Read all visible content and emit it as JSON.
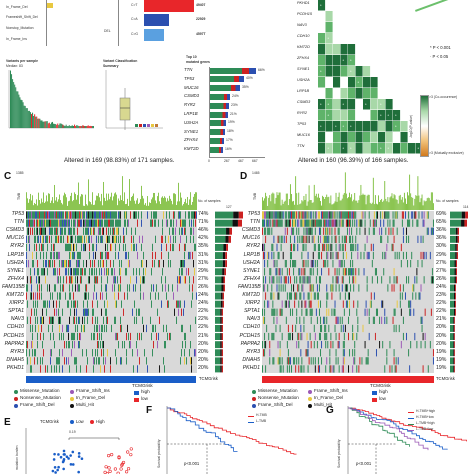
{
  "panel_letters": {
    "C": "C",
    "D": "D",
    "E": "E",
    "F": "F",
    "G": "G"
  },
  "colors": {
    "missense": "#2e8b57",
    "nonsense": "#cc2222",
    "frame_shift_del": "#2b4fb0",
    "frame_shift_ins": "#9b59b6",
    "in_frame_del": "#e8c840",
    "in_frame_ins": "#c07a3a",
    "multi_hit": "#111111",
    "tmb_bar": "#7fbf3f",
    "grid_bg": "#d9d9d9",
    "high_risk": "#1a5ec8",
    "low_risk": "#e8262a",
    "cooccur_dark": "#1f6e3a",
    "cooccur_light": "#a8d8a8"
  },
  "top": {
    "var_labels": [
      "In_Frame_Del",
      "Frameshift_Shift_Del",
      "Nonstop_Mutation",
      "In_Frame_Ins"
    ],
    "snv_rows": [
      {
        "label": "C>T",
        "value": "49407"
      },
      {
        "label": "C>A",
        "value": "22929"
      },
      {
        "label": "C>G",
        "value": "4597T"
      }
    ],
    "del_label": "DEL",
    "variants_per_sample_title": "Variants per sample",
    "variants_per_sample_sub": "Median: 83",
    "variant_class_title": "Variant Classification",
    "variant_class_sub": "Summary",
    "top10_title": "Top 10",
    "top10_sub": "mutated genes",
    "top10": [
      {
        "gene": "TTN",
        "pct": "66%"
      },
      {
        "gene": "TP53",
        "pct": "40%"
      },
      {
        "gene": "MUC16",
        "pct": "35%"
      },
      {
        "gene": "CSMD3",
        "pct": "24%"
      },
      {
        "gene": "RYR2",
        "pct": "23%"
      },
      {
        "gene": "LRP1B",
        "pct": "21%"
      },
      {
        "gene": "USH2A",
        "pct": "19%"
      },
      {
        "gene": "SYNE1",
        "pct": "18%"
      },
      {
        "gene": "ZFHX4",
        "pct": "17%"
      },
      {
        "gene": "KMT2D",
        "pct": "16%"
      }
    ],
    "top10_axis": [
      "0",
      "267",
      "467",
      "667"
    ],
    "cooccur_genes": [
      "PKHD1",
      "PCDH15",
      "NAV3",
      "CDH10",
      "KMT2D",
      "ZFHX4",
      "SYNE1",
      "USH2A",
      "LRP1B",
      "CSMD3",
      "RYR2",
      "TP53",
      "MUC16",
      "TTN"
    ],
    "p_legend": [
      "* P < 0.001",
      "· P < 0.05"
    ],
    "cooccur_legend": [
      ">3 (Co-occurence)",
      "-log10(P-value)",
      ">3 (Mutually exclusive)"
    ],
    "cooccur_ticks": [
      "3",
      "2",
      "1",
      "0",
      "1",
      "2",
      "3"
    ]
  },
  "panelC": {
    "title": "Altered in 169 (98.83%) of 171 samples.",
    "tmb_label": "TMB",
    "tmb_max": "1385",
    "count_label": "No. of samples",
    "count_max": "127",
    "genes": [
      "TP53",
      "TTN",
      "CSMD3",
      "MUC16",
      "RYR2",
      "LRP1B",
      "USH2A",
      "SYNE1",
      "ZFHX4",
      "FAM135B",
      "KMT2D",
      "XIRP2",
      "SPTA1",
      "NAV3",
      "CDH10",
      "PCDH15",
      "PAPPA2",
      "RYR3",
      "DNAH5",
      "PKHD1"
    ],
    "pcts": [
      "74%",
      "71%",
      "46%",
      "42%",
      "35%",
      "31%",
      "31%",
      "29%",
      "27%",
      "26%",
      "24%",
      "24%",
      "22%",
      "22%",
      "22%",
      "21%",
      "20%",
      "20%",
      "20%",
      "20%"
    ],
    "risk_label": "TCMGrisk",
    "legend_muts": [
      "Missense_Mutation",
      "Nonsense_Mutation",
      "Frame_Shift_Del",
      "Frame_Shift_Ins",
      "In_Frame_Del",
      "Multi_Hit"
    ],
    "legend_risk_title": "TCMGrisk",
    "legend_risk": [
      "high",
      "low"
    ]
  },
  "panelD": {
    "title": "Altered in 160 (96.39%) of 166 samples.",
    "tmb_label": "TMB",
    "tmb_max": "1465",
    "count_label": "No. of samples",
    "count_max": "114",
    "genes": [
      "TP53",
      "TTN",
      "CSMD3",
      "MUC16",
      "RYR2",
      "LRP1B",
      "USH2A",
      "SYNE1",
      "ZFHX4",
      "FAM135B",
      "KMT2D",
      "XIRP2",
      "SPTA1",
      "NAV3",
      "CDH10",
      "PCDH15",
      "PAPPA2",
      "RYR3",
      "DNAH5",
      "PKHD1"
    ],
    "pcts": [
      "69%",
      "65%",
      "36%",
      "36%",
      "30%",
      "29%",
      "27%",
      "27%",
      "26%",
      "24%",
      "23%",
      "22%",
      "22%",
      "21%",
      "20%",
      "20%",
      "20%",
      "19%",
      "19%",
      "19%"
    ],
    "risk_label": "TCMGrisk",
    "legend_muts": [
      "Missense_Mutation",
      "Nonsense_Mutation",
      "Frame_Shift_Del",
      "Frame_Shift_Ins",
      "In_Frame_Del",
      "Multi_Hit"
    ],
    "legend_risk_title": "TCMGrisk",
    "legend_risk": [
      "high",
      "low"
    ]
  },
  "panelE": {
    "legend_title": "TCMGrisk",
    "legend_items": [
      "Low",
      "High"
    ],
    "ylabel": "mutation burden",
    "p_value": "0.19"
  },
  "panelF": {
    "ylabel": "Survival probability",
    "legend": [
      "H-TMB",
      "L-TMB"
    ],
    "p_value": "p<0.001"
  },
  "panelG": {
    "ylabel": "Survival probability",
    "legend": [
      "H-TMB+high",
      "H-TMB+low",
      "L-TMB+high",
      "L-TMB+low"
    ],
    "p_value": "p<0.001"
  }
}
